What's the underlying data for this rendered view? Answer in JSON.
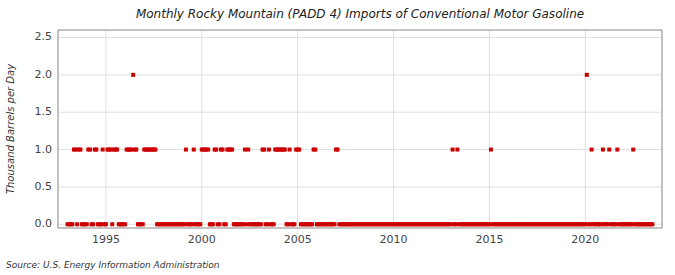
{
  "chart_data": {
    "type": "scatter",
    "title": "Monthly Rocky Mountain (PADD 4) Imports of Conventional Motor Gasoline",
    "y_label": "Thousand Barrels per Day",
    "annotations": [
      "Source: U.S. Energy Information Administration"
    ],
    "grid": true,
    "xlim": [
      1992.5,
      2024.0
    ],
    "ylim": [
      -0.05,
      2.6
    ],
    "xticks": [
      1995,
      2000,
      2005,
      2010,
      2015,
      2020
    ],
    "yticks": [
      {
        "value": 0.0,
        "label": "0.0"
      },
      0.5,
      {
        "value": 1.0,
        "label": "1.0"
      },
      1.5,
      {
        "value": 2.0,
        "label": "2.0"
      },
      2.5
    ],
    "x": [
      1993.0,
      1993.08,
      1993.17,
      1993.25,
      1993.33,
      1993.42,
      1993.5,
      1993.58,
      1993.67,
      1993.75,
      1993.83,
      1993.92,
      1994.0,
      1994.08,
      1994.17,
      1994.25,
      1994.33,
      1994.42,
      1994.5,
      1994.58,
      1994.67,
      1994.75,
      1994.83,
      1994.92,
      1995.0,
      1995.08,
      1995.17,
      1995.25,
      1995.33,
      1995.42,
      1995.5,
      1995.58,
      1995.67,
      1995.75,
      1995.83,
      1995.92,
      1996.0,
      1996.08,
      1996.17,
      1996.25,
      1996.33,
      1996.42,
      1996.5,
      1996.58,
      1996.67,
      1996.75,
      1996.83,
      1996.92,
      1997.0,
      1997.08,
      1997.17,
      1997.25,
      1997.33,
      1997.42,
      1997.5,
      1997.58,
      1997.67,
      1997.75,
      1997.83,
      1997.92,
      1998.0,
      1998.08,
      1998.17,
      1998.25,
      1998.33,
      1998.42,
      1998.5,
      1998.58,
      1998.67,
      1998.75,
      1998.83,
      1998.92,
      1999.0,
      1999.08,
      1999.17,
      1999.25,
      1999.33,
      1999.42,
      1999.5,
      1999.58,
      1999.67,
      1999.75,
      1999.83,
      1999.92,
      2000.0,
      2000.08,
      2000.17,
      2000.25,
      2000.33,
      2000.42,
      2000.5,
      2000.58,
      2000.67,
      2000.75,
      2000.83,
      2000.92,
      2001.0,
      2001.08,
      2001.17,
      2001.25,
      2001.33,
      2001.42,
      2001.5,
      2001.58,
      2001.67,
      2001.75,
      2001.83,
      2001.92,
      2002.0,
      2002.08,
      2002.17,
      2002.25,
      2002.33,
      2002.42,
      2002.5,
      2002.58,
      2002.67,
      2002.75,
      2002.83,
      2002.92,
      2003.0,
      2003.08,
      2003.17,
      2003.25,
      2003.33,
      2003.42,
      2003.5,
      2003.58,
      2003.67,
      2003.75,
      2003.83,
      2003.92,
      2004.0,
      2004.08,
      2004.17,
      2004.25,
      2004.33,
      2004.42,
      2004.5,
      2004.58,
      2004.67,
      2004.75,
      2004.83,
      2004.92,
      2005.0,
      2005.08,
      2005.17,
      2005.25,
      2005.33,
      2005.42,
      2005.5,
      2005.58,
      2005.67,
      2005.75,
      2005.83,
      2005.92,
      2006.0,
      2006.08,
      2006.17,
      2006.25,
      2006.33,
      2006.42,
      2006.5,
      2006.58,
      2006.67,
      2006.75,
      2006.83,
      2006.92,
      2007.0,
      2007.08,
      2007.17,
      2007.25,
      2007.33,
      2007.42,
      2007.5,
      2007.58,
      2007.67,
      2007.75,
      2007.83,
      2007.92,
      2008.0,
      2008.08,
      2008.17,
      2008.25,
      2008.33,
      2008.42,
      2008.5,
      2008.58,
      2008.67,
      2008.75,
      2008.83,
      2008.92,
      2009.0,
      2009.08,
      2009.17,
      2009.25,
      2009.33,
      2009.42,
      2009.5,
      2009.58,
      2009.67,
      2009.75,
      2009.83,
      2009.92,
      2010.0,
      2010.08,
      2010.17,
      2010.25,
      2010.33,
      2010.42,
      2010.5,
      2010.58,
      2010.67,
      2010.75,
      2010.83,
      2010.92,
      2011.0,
      2011.08,
      2011.17,
      2011.25,
      2011.33,
      2011.42,
      2011.5,
      2011.58,
      2011.67,
      2011.75,
      2011.83,
      2011.92,
      2012.0,
      2012.08,
      2012.17,
      2012.25,
      2012.33,
      2012.42,
      2012.5,
      2012.58,
      2012.67,
      2012.75,
      2012.83,
      2012.92,
      2013.0,
      2013.08,
      2013.17,
      2013.25,
      2013.33,
      2013.42,
      2013.5,
      2013.58,
      2013.67,
      2013.75,
      2013.83,
      2013.92,
      2014.0,
      2014.08,
      2014.17,
      2014.25,
      2014.33,
      2014.42,
      2014.5,
      2014.58,
      2014.67,
      2014.75,
      2014.83,
      2014.92,
      2015.0,
      2015.08,
      2015.17,
      2015.25,
      2015.33,
      2015.42,
      2015.5,
      2015.58,
      2015.67,
      2015.75,
      2015.83,
      2015.92,
      2016.0,
      2016.08,
      2016.17,
      2016.25,
      2016.33,
      2016.42,
      2016.5,
      2016.58,
      2016.67,
      2016.75,
      2016.83,
      2016.92,
      2017.0,
      2017.08,
      2017.17,
      2017.25,
      2017.33,
      2017.42,
      2017.5,
      2017.58,
      2017.67,
      2017.75,
      2017.83,
      2017.92,
      2018.0,
      2018.08,
      2018.17,
      2018.25,
      2018.33,
      2018.42,
      2018.5,
      2018.58,
      2018.67,
      2018.75,
      2018.83,
      2018.92,
      2019.0,
      2019.08,
      2019.17,
      2019.25,
      2019.33,
      2019.42,
      2019.5,
      2019.58,
      2019.67,
      2019.75,
      2019.83,
      2019.92,
      2020.0,
      2020.08,
      2020.17,
      2020.25,
      2020.33,
      2020.42,
      2020.5,
      2020.58,
      2020.67,
      2020.75,
      2020.83,
      2020.92,
      2021.0,
      2021.08,
      2021.17,
      2021.25,
      2021.33,
      2021.42,
      2021.5,
      2021.58,
      2021.67,
      2021.75,
      2021.83,
      2021.92,
      2022.0,
      2022.08,
      2022.17,
      2022.25,
      2022.33,
      2022.42,
      2022.5,
      2022.58,
      2022.67,
      2022.75,
      2022.83,
      2022.92,
      2023.0,
      2023.08,
      2023.17,
      2023.25,
      2023.33,
      2023.42,
      2023.5
    ],
    "series": [
      {
        "color": "#cc0000",
        "marker": "square",
        "values": [
          0,
          0,
          0,
          0,
          1,
          1,
          0,
          1,
          1,
          0,
          0,
          0,
          0,
          1,
          1,
          0,
          0,
          1,
          1,
          0,
          0,
          0,
          1,
          0,
          0,
          1,
          1,
          1,
          0,
          1,
          1,
          1,
          0,
          0,
          0,
          0,
          0,
          1,
          1,
          1,
          1,
          2,
          1,
          1,
          0,
          0,
          0,
          0,
          1,
          1,
          1,
          1,
          1,
          1,
          1,
          1,
          0,
          0,
          0,
          0,
          0,
          0,
          0,
          0,
          0,
          0,
          0,
          0,
          0,
          0,
          0,
          0,
          0,
          0,
          1,
          0,
          0,
          0,
          0,
          1,
          0,
          0,
          0,
          0,
          1,
          1,
          1,
          1,
          1,
          0,
          0,
          0,
          1,
          1,
          0,
          0,
          1,
          1,
          0,
          0,
          1,
          1,
          1,
          1,
          0,
          0,
          0,
          0,
          0,
          0,
          0,
          1,
          0,
          1,
          0,
          0,
          0,
          0,
          0,
          0,
          0,
          0,
          1,
          1,
          0,
          0,
          1,
          0,
          0,
          0,
          1,
          1,
          1,
          1,
          1,
          1,
          1,
          0,
          0,
          1,
          0,
          0,
          0,
          1,
          1,
          1,
          0,
          0,
          0,
          0,
          0,
          0,
          0,
          0,
          1,
          1,
          0,
          0,
          0,
          0,
          0,
          0,
          0,
          0,
          0,
          0,
          0,
          0,
          1,
          1,
          0,
          0,
          0,
          0,
          0,
          0,
          0,
          0,
          0,
          0,
          0,
          0,
          0,
          0,
          0,
          0,
          0,
          0,
          0,
          0,
          0,
          0,
          0,
          0,
          0,
          0,
          0,
          0,
          0,
          0,
          0,
          0,
          0,
          0,
          0,
          0,
          0,
          0,
          0,
          0,
          0,
          0,
          0,
          0,
          0,
          0,
          0,
          0,
          0,
          0,
          0,
          0,
          0,
          0,
          0,
          0,
          0,
          0,
          0,
          0,
          0,
          0,
          0,
          0,
          0,
          0,
          0,
          0,
          0,
          0,
          0,
          1,
          0,
          0,
          1,
          0,
          0,
          0,
          0,
          0,
          0,
          0,
          0,
          0,
          0,
          0,
          0,
          0,
          0,
          0,
          0,
          0,
          0,
          0,
          0,
          1,
          0,
          0,
          0,
          0,
          0,
          0,
          0,
          0,
          0,
          0,
          0,
          0,
          0,
          0,
          0,
          0,
          0,
          0,
          0,
          0,
          0,
          0,
          0,
          0,
          0,
          0,
          0,
          0,
          0,
          0,
          0,
          0,
          0,
          0,
          0,
          0,
          0,
          0,
          0,
          0,
          0,
          0,
          0,
          0,
          0,
          0,
          0,
          0,
          0,
          0,
          0,
          0,
          0,
          0,
          0,
          0,
          0,
          0,
          0,
          2,
          0,
          0,
          1,
          0,
          0,
          0,
          0,
          0,
          0,
          1,
          0,
          0,
          0,
          1,
          0,
          0,
          0,
          0,
          1,
          0,
          0,
          0,
          0,
          0,
          0,
          0,
          0,
          0,
          1,
          0,
          0,
          0,
          0,
          0,
          0,
          0,
          0,
          0,
          0,
          0,
          0
        ]
      }
    ]
  }
}
